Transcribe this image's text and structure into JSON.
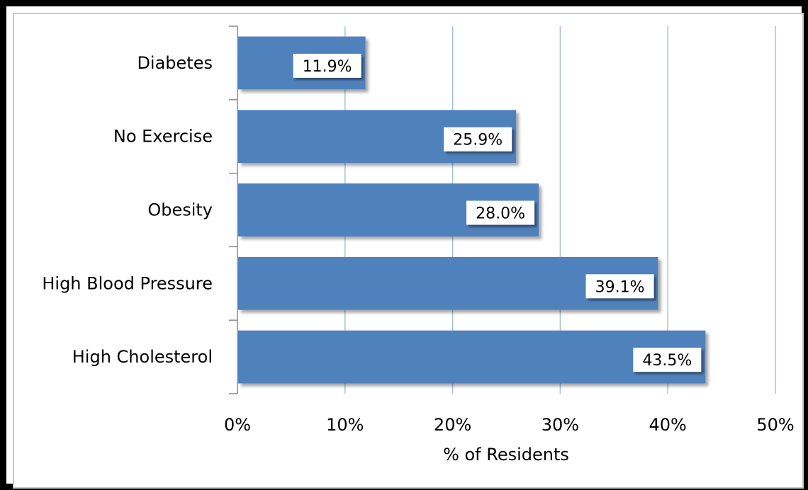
{
  "chart_data": {
    "type": "bar",
    "orientation": "horizontal",
    "categories": [
      "Diabetes",
      "No Exercise",
      "Obesity",
      "High Blood Pressure",
      "High Cholesterol"
    ],
    "values": [
      11.9,
      25.9,
      28.0,
      39.1,
      43.5
    ],
    "data_labels": [
      "11.9%",
      "25.9%",
      "28.0%",
      "39.1%",
      "43.5%"
    ],
    "xlabel": "% of Residents",
    "ylabel": "",
    "xlim": [
      0,
      50
    ],
    "x_ticks": [
      0,
      10,
      20,
      30,
      40,
      50
    ],
    "x_tick_labels": [
      "0%",
      "10%",
      "20%",
      "30%",
      "40%",
      "50%"
    ],
    "grid": "vertical",
    "bar_color": "#4f81bd",
    "grid_color": "#a6bfdc"
  }
}
